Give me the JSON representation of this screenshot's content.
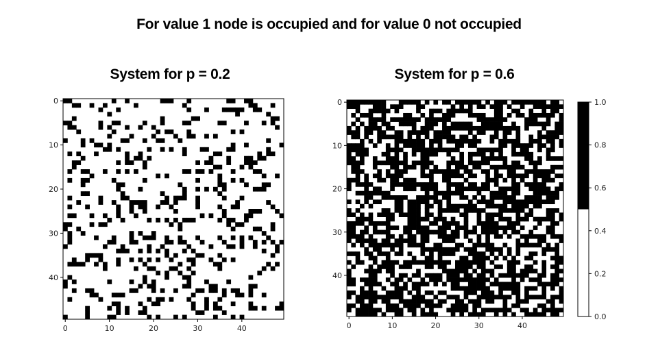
{
  "title": "For value 1 node is occupied and for value 0 not occupied",
  "colors": {
    "occupied": "#000000",
    "empty": "#ffffff",
    "axis": "#000000"
  },
  "chart_data": [
    {
      "type": "heatmap",
      "title": "System for p = 0.2",
      "grid_size": [
        50,
        50
      ],
      "p": 0.2,
      "seed": 7,
      "values_encoding": "random binary occupancy, 1 = occupied (black), 0 = empty (white)",
      "xticks": [
        0,
        10,
        20,
        30,
        40
      ],
      "yticks": [
        0,
        10,
        20,
        30,
        40
      ],
      "xlim": [
        -0.5,
        49.5
      ],
      "ylim": [
        49.5,
        -0.5
      ]
    },
    {
      "type": "heatmap",
      "title": "System for p = 0.6",
      "grid_size": [
        50,
        50
      ],
      "p": 0.6,
      "seed": 13,
      "values_encoding": "random binary occupancy, 1 = occupied (black), 0 = empty (white)",
      "xticks": [
        0,
        10,
        20,
        30,
        40
      ],
      "yticks": [
        0,
        10,
        20,
        30,
        40
      ],
      "xlim": [
        -0.5,
        49.5
      ],
      "ylim": [
        49.5,
        -0.5
      ]
    }
  ],
  "colorbar": {
    "ticks": [
      "0.0",
      "0.2",
      "0.4",
      "0.6",
      "0.8",
      "1.0"
    ],
    "range": [
      0,
      1
    ],
    "split": 0.5
  }
}
